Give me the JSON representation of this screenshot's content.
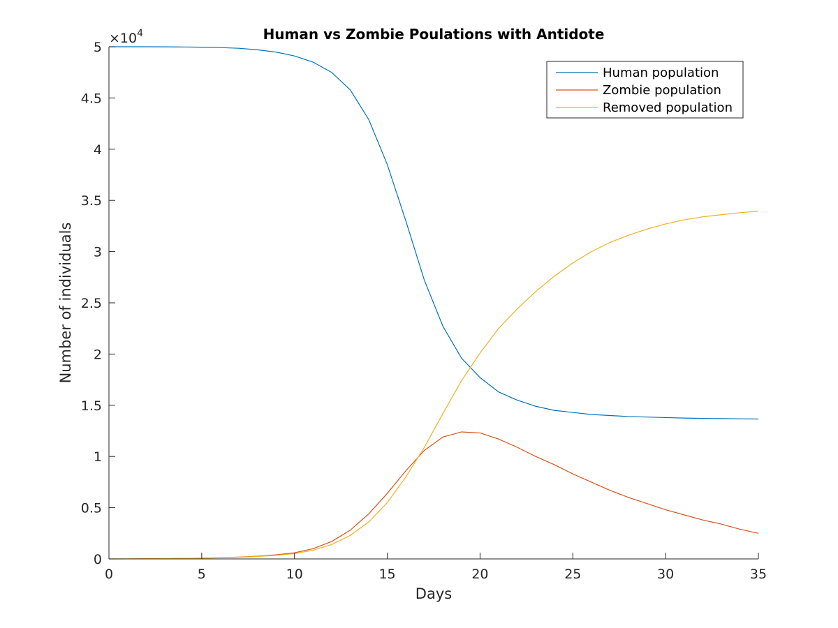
{
  "chart_data": {
    "type": "line",
    "title": "Human vs Zombie Poulations with Antidote",
    "xlabel": "Days",
    "ylabel": "Number of individuals",
    "xlim": [
      0,
      35
    ],
    "ylim": [
      0,
      50000
    ],
    "y_exponent_base": "×10",
    "y_exponent_power": "4",
    "x_ticks": [
      0,
      5,
      10,
      15,
      20,
      25,
      30,
      35
    ],
    "x_tick_labels": [
      "0",
      "5",
      "10",
      "15",
      "20",
      "25",
      "30",
      "35"
    ],
    "y_ticks": [
      0,
      5000,
      10000,
      15000,
      20000,
      25000,
      30000,
      35000,
      40000,
      45000,
      50000
    ],
    "y_tick_labels": [
      "0",
      "0.5",
      "1",
      "1.5",
      "2",
      "2.5",
      "3",
      "3.5",
      "4",
      "4.5",
      "5"
    ],
    "grid": false,
    "legend_position": "top-right",
    "x": [
      0,
      1,
      2,
      3,
      4,
      5,
      6,
      7,
      8,
      9,
      10,
      11,
      12,
      13,
      14,
      15,
      16,
      17,
      18,
      19,
      20,
      21,
      22,
      23,
      24,
      25,
      26,
      27,
      28,
      29,
      30,
      31,
      32,
      33,
      34,
      35
    ],
    "series": [
      {
        "name": "Human population",
        "color": "#0072BD",
        "values": [
          50000,
          50000,
          50000,
          49990,
          49980,
          49960,
          49920,
          49850,
          49700,
          49480,
          49100,
          48500,
          47500,
          45800,
          42900,
          38500,
          33000,
          27200,
          22700,
          19600,
          17700,
          16300,
          15500,
          14900,
          14500,
          14300,
          14100,
          14000,
          13900,
          13850,
          13800,
          13750,
          13720,
          13700,
          13680,
          13660
        ]
      },
      {
        "name": "Zombie population",
        "color": "#D95319",
        "values": [
          0,
          5,
          15,
          30,
          50,
          80,
          120,
          180,
          270,
          400,
          600,
          1000,
          1700,
          2800,
          4400,
          6400,
          8600,
          10600,
          11900,
          12400,
          12300,
          11700,
          10900,
          10000,
          9200,
          8300,
          7500,
          6700,
          6000,
          5400,
          4800,
          4300,
          3800,
          3400,
          2900,
          2500
        ]
      },
      {
        "name": "Removed population",
        "color": "#EDB120",
        "values": [
          0,
          5,
          15,
          30,
          50,
          70,
          110,
          160,
          240,
          350,
          520,
          850,
          1400,
          2300,
          3600,
          5500,
          8000,
          10900,
          14200,
          17400,
          20100,
          22500,
          24400,
          26100,
          27600,
          28900,
          30000,
          30900,
          31600,
          32200,
          32700,
          33100,
          33400,
          33600,
          33800,
          33950
        ]
      }
    ]
  }
}
